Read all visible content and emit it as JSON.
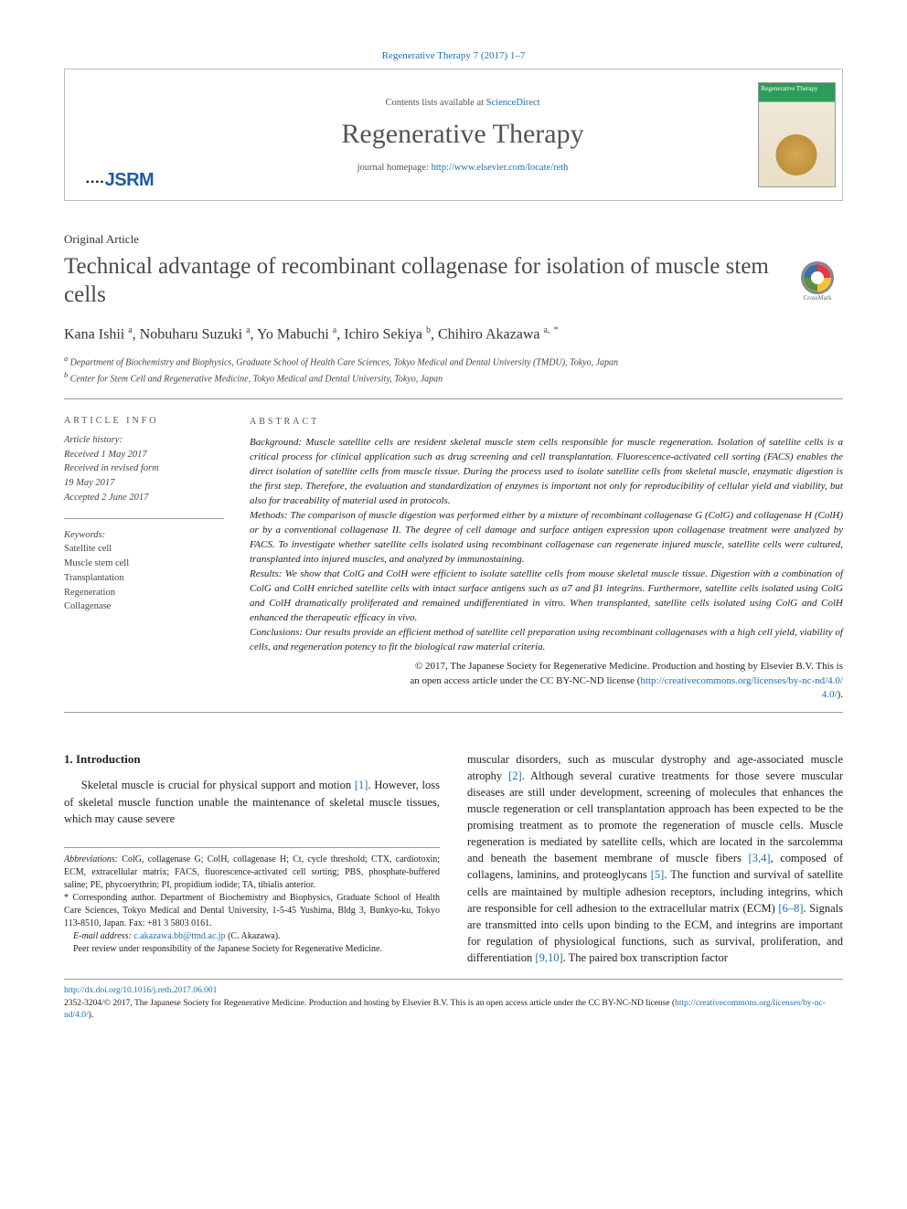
{
  "header": {
    "citation": "Regenerative Therapy 7 (2017) 1–7",
    "contents_prefix": "Contents lists available at ",
    "contents_link": "ScienceDirect",
    "journal_name": "Regenerative Therapy",
    "homepage_prefix": "journal homepage: ",
    "homepage_link": "http://www.elsevier.com/locate/reth",
    "logo_text": "JSRM",
    "logo_dots": "••••",
    "cover_label": "Regenerative Therapy"
  },
  "crossmark_label": "CrossMark",
  "article": {
    "type": "Original Article",
    "title": "Technical advantage of recombinant collagenase for isolation of muscle stem cells",
    "authors_html": "Kana Ishii <sup>a</sup>, Nobuharu Suzuki <sup>a</sup>, Yo Mabuchi <sup>a</sup>, Ichiro Sekiya <sup>b</sup>, Chihiro Akazawa <sup>a,</sup> <sup class='corr'>*</sup>",
    "affiliations": [
      {
        "label": "a",
        "text": "Department of Biochemistry and Biophysics, Graduate School of Health Care Sciences, Tokyo Medical and Dental University (TMDU), Tokyo, Japan"
      },
      {
        "label": "b",
        "text": "Center for Stem Cell and Regenerative Medicine, Tokyo Medical and Dental University, Tokyo, Japan"
      }
    ]
  },
  "info": {
    "heading": "article info",
    "history_label": "Article history:",
    "history": [
      "Received 1 May 2017",
      "Received in revised form",
      "19 May 2017",
      "Accepted 2 June 2017"
    ],
    "keywords_label": "Keywords:",
    "keywords": [
      "Satellite cell",
      "Muscle stem cell",
      "Transplantation",
      "Regeneration",
      "Collagenase"
    ]
  },
  "abstract": {
    "heading": "abstract",
    "sections": {
      "background": "Background: Muscle satellite cells are resident skeletal muscle stem cells responsible for muscle regeneration. Isolation of satellite cells is a critical process for clinical application such as drug screening and cell transplantation. Fluorescence-activated cell sorting (FACS) enables the direct isolation of satellite cells from muscle tissue. During the process used to isolate satellite cells from skeletal muscle, enzymatic digestion is the first step. Therefore, the evaluation and standardization of enzymes is important not only for reproducibility of cellular yield and viability, but also for traceability of material used in protocols.",
      "methods": "Methods: The comparison of muscle digestion was performed either by a mixture of recombinant collagenase G (ColG) and collagenase H (ColH) or by a conventional collagenase II. The degree of cell damage and surface antigen expression upon collagenase treatment were analyzed by FACS. To investigate whether satellite cells isolated using recombinant collagenase can regenerate injured muscle, satellite cells were cultured, transplanted into injured muscles, and analyzed by immunostaining.",
      "results": "Results: We show that ColG and ColH were efficient to isolate satellite cells from mouse skeletal muscle tissue. Digestion with a combination of ColG and ColH enriched satellite cells with intact surface antigens such as α7 and β1 integrins. Furthermore, satellite cells isolated using ColG and ColH dramatically proliferated and remained undifferentiated in vitro. When transplanted, satellite cells isolated using ColG and ColH enhanced the therapeutic efficacy in vivo.",
      "conclusions": "Conclusions: Our results provide an efficient method of satellite cell preparation using recombinant collagenases with a high cell yield, viability of cells, and regeneration potency to fit the biological raw material criteria."
    },
    "copyright_line1": "© 2017, The Japanese Society for Regenerative Medicine. Production and hosting by Elsevier B.V. This is",
    "copyright_line2": "an open access article under the CC BY-NC-ND license (",
    "license_link": "http://creativecommons.org/licenses/by-nc-nd/4.0/",
    "copyright_close": ")."
  },
  "body": {
    "section_number": "1.",
    "section_title": "Introduction",
    "para1": "Skeletal muscle is crucial for physical support and motion [1]. However, loss of skeletal muscle function unable the maintenance of skeletal muscle tissues, which may cause severe",
    "para2": "muscular disorders, such as muscular dystrophy and age-associated muscle atrophy [2]. Although several curative treatments for those severe muscular diseases are still under development, screening of molecules that enhances the muscle regeneration or cell transplantation approach has been expected to be the promising treatment as to promote the regeneration of muscle cells. Muscle regeneration is mediated by satellite cells, which are located in the sarcolemma and beneath the basement membrane of muscle fibers [3,4], composed of collagens, laminins, and proteoglycans [5]. The function and survival of satellite cells are maintained by multiple adhesion receptors, including integrins, which are responsible for cell adhesion to the extracellular matrix (ECM) [6–8]. Signals are transmitted into cells upon binding to the ECM, and integrins are important for regulation of physiological functions, such as survival, proliferation, and differentiation [9,10]. The paired box transcription factor",
    "refs": {
      "r1": "[1]",
      "r2": "[2]",
      "r34": "[3,4]",
      "r5": "[5]",
      "r68": "[6–8]",
      "r910": "[9,10]"
    }
  },
  "footnotes": {
    "abbrev_label": "Abbreviations:",
    "abbrev_text": " ColG, collagenase G; ColH, collagenase H; Ct, cycle threshold; CTX, cardiotoxin; ECM, extracellular matrix; FACS, fluorescence-activated cell sorting; PBS, phosphate-buffered saline; PE, phycoerythrin; PI, propidium iodide; TA, tibialis anterior.",
    "corr_mark": "*",
    "corr_text": " Corresponding author. Department of Biochemistry and Biophysics, Graduate School of Health Care Sciences, Tokyo Medical and Dental University, 1-5-45 Yushima, Bldg 3, Bunkyo-ku, Tokyo 113-8510, Japan. Fax: +81 3 5803 0161.",
    "email_label": "E-mail address:",
    "email": "c.akazawa.bb@tmd.ac.jp",
    "email_person": " (C. Akazawa).",
    "peer": "Peer review under responsibility of the Japanese Society for Regenerative Medicine."
  },
  "bottom": {
    "doi": "http://dx.doi.org/10.1016/j.reth.2017.06.001",
    "issn_line": "2352-3204/© 2017, The Japanese Society for Regenerative Medicine. Production and hosting by Elsevier B.V. This is an open access article under the CC BY-NC-ND license (",
    "license_link": "http://creativecommons.org/licenses/by-nc-nd/4.0/",
    "close": ")."
  },
  "colors": {
    "link": "#1a6fb5",
    "text": "#222222",
    "heading_gray": "#4a4a4a",
    "border": "#999999"
  }
}
